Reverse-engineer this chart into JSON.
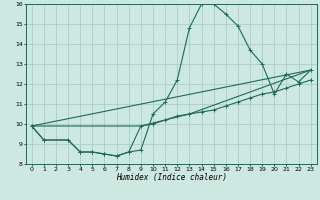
{
  "xlabel": "Humidex (Indice chaleur)",
  "bg_color": "#cce8e0",
  "grid_color": "#aacccc",
  "line_color": "#1a6b5a",
  "xlim": [
    -0.5,
    23.5
  ],
  "ylim": [
    8,
    16
  ],
  "xticks": [
    0,
    1,
    2,
    3,
    4,
    5,
    6,
    7,
    8,
    9,
    10,
    11,
    12,
    13,
    14,
    15,
    16,
    17,
    18,
    19,
    20,
    21,
    22,
    23
  ],
  "yticks": [
    8,
    9,
    10,
    11,
    12,
    13,
    14,
    15,
    16
  ],
  "line1_x": [
    0,
    1,
    3,
    4,
    5,
    6,
    7,
    8,
    9,
    10,
    11,
    12,
    13,
    14,
    15,
    16,
    17,
    18,
    19,
    20,
    21,
    22,
    23
  ],
  "line1_y": [
    9.9,
    9.2,
    9.2,
    8.6,
    8.6,
    8.5,
    8.4,
    8.6,
    8.7,
    10.5,
    11.1,
    12.2,
    14.8,
    16.0,
    16.0,
    15.5,
    14.9,
    13.7,
    13.0,
    11.5,
    12.5,
    12.1,
    12.7
  ],
  "line2_x": [
    0,
    1,
    3,
    4,
    5,
    6,
    7,
    8,
    9,
    10,
    11,
    12,
    13,
    14,
    15,
    16,
    17,
    18,
    19,
    20,
    21,
    22,
    23
  ],
  "line2_y": [
    9.9,
    9.2,
    9.2,
    8.6,
    8.6,
    8.5,
    8.4,
    8.6,
    9.9,
    10.0,
    10.2,
    10.4,
    10.5,
    10.6,
    10.7,
    10.9,
    11.1,
    11.3,
    11.5,
    11.6,
    11.8,
    12.0,
    12.2
  ],
  "line3_x": [
    0,
    23
  ],
  "line3_y": [
    9.9,
    12.7
  ],
  "line4_x": [
    0,
    9,
    13,
    23
  ],
  "line4_y": [
    9.9,
    9.9,
    10.5,
    12.7
  ]
}
